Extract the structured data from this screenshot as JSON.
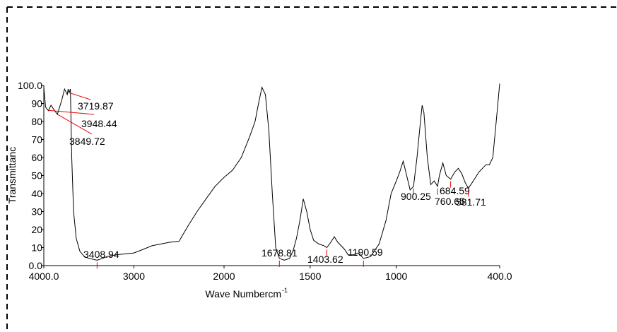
{
  "chart_data": {
    "type": "line",
    "ylabel": "Transmittanc",
    "xlabel": "Wave Numbercm",
    "xlabel_sup": "-1",
    "xlim": [
      4000,
      400
    ],
    "xbreak": 2000,
    "xticks": [
      {
        "value": 4000,
        "label": "4000.0"
      },
      3000,
      2000,
      1500,
      1000,
      {
        "value": 400,
        "label": "400.0"
      }
    ],
    "ylim": [
      0,
      100
    ],
    "yticks": [
      {
        "value": 0,
        "label": "0.0"
      },
      10,
      20,
      30,
      40,
      50,
      60,
      70,
      80,
      90,
      {
        "value": 100,
        "label": "100.0"
      }
    ],
    "x": [
      4000,
      3980,
      3950,
      3920,
      3880,
      3849.72,
      3800,
      3770,
      3740,
      3730,
      3719.87,
      3705,
      3690,
      3670,
      3640,
      3600,
      3550,
      3500,
      3450,
      3408.94,
      3350,
      3300,
      3200,
      3100,
      3000,
      2900,
      2800,
      2700,
      2600,
      2500,
      2400,
      2300,
      2200,
      2100,
      2000,
      1950,
      1900,
      1850,
      1820,
      1800,
      1780,
      1760,
      1740,
      1720,
      1700,
      1678.81,
      1650,
      1620,
      1600,
      1580,
      1560,
      1540,
      1520,
      1500,
      1480,
      1450,
      1420,
      1403.62,
      1380,
      1360,
      1340,
      1300,
      1280,
      1250,
      1220,
      1190.59,
      1150,
      1100,
      1060,
      1030,
      1000,
      980,
      960,
      940,
      920,
      900.25,
      880,
      860,
      850,
      840,
      820,
      800,
      780,
      760.65,
      750,
      730,
      710,
      684.59,
      660,
      640,
      620,
      600,
      581.71,
      560,
      520,
      480,
      460,
      440,
      420,
      400
    ],
    "series": [
      {
        "color": "#000000",
        "values": [
          99,
          88,
          86,
          89,
          86,
          84,
          92,
          98,
          95,
          98,
          96,
          98,
          60,
          30,
          15,
          8,
          5,
          4,
          3.5,
          3,
          4,
          5,
          6,
          6.5,
          7,
          9,
          11,
          12,
          13,
          13.5,
          22,
          30,
          37,
          44,
          49,
          53,
          60,
          72,
          80,
          90,
          99,
          95,
          75,
          40,
          10,
          4,
          3,
          4,
          8,
          15,
          25,
          37,
          30,
          20,
          14,
          12,
          11,
          10,
          13,
          16,
          13,
          9,
          6,
          6,
          7,
          4,
          5,
          12,
          25,
          40,
          47,
          52,
          58,
          50,
          42,
          44,
          60,
          80,
          89,
          85,
          60,
          45,
          47,
          44,
          50,
          57,
          50,
          48,
          52,
          54,
          51,
          46,
          43,
          46,
          52,
          56,
          56,
          60,
          80,
          101
        ]
      }
    ],
    "peaks": [
      3719.87,
      3948.44,
      3849.72,
      3408.94,
      1678.81,
      1403.62,
      1190.59,
      900.25,
      760.65,
      684.59,
      581.71
    ]
  }
}
